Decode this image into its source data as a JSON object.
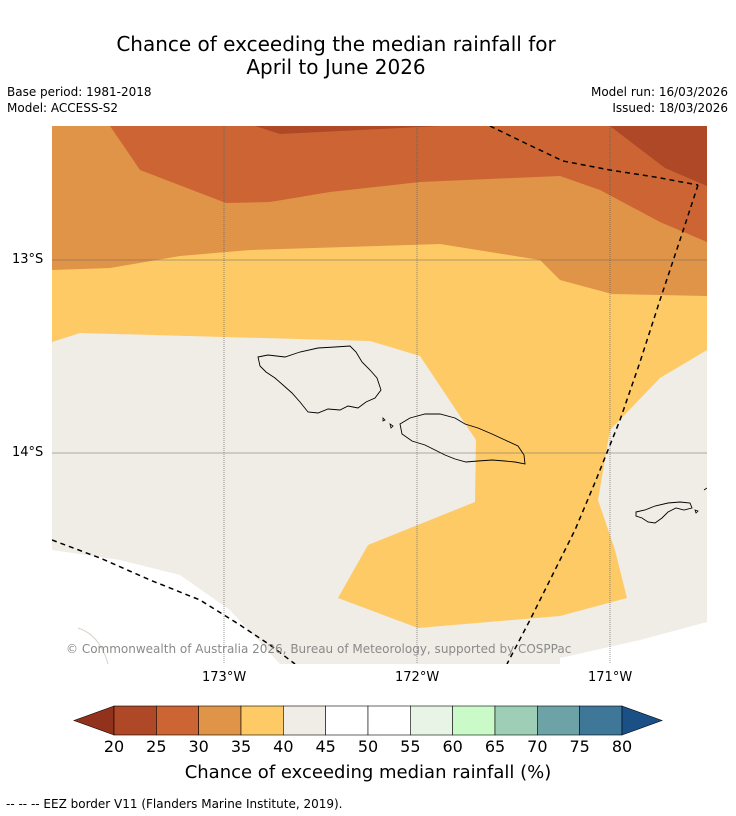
{
  "header": {
    "title_line1": "Chance of exceeding the median rainfall for",
    "title_line2": "April to June 2026",
    "base_period": "Base period: 1981-2018",
    "model": "Model: ACCESS-S2",
    "model_run": "Model run: 16/03/2026",
    "issued": "Issued: 18/03/2026"
  },
  "map": {
    "lon_ticks": [
      "173°W",
      "172°W",
      "171°W"
    ],
    "lat_ticks": [
      "13°S",
      "14°S"
    ],
    "copyright": "© Commonwealth of Australia 2026, Bureau of Meteorology, supported by COSPPac",
    "region_categories": [
      "20-25",
      "25-30",
      "30-35",
      "35-40",
      "40-45"
    ]
  },
  "colorbar": {
    "ticks": [
      "20",
      "25",
      "30",
      "35",
      "40",
      "45",
      "50",
      "55",
      "60",
      "65",
      "70",
      "75",
      "80"
    ],
    "colors": [
      "#ae4826",
      "#cc6533",
      "#e09448",
      "#fdca66",
      "#f0ece6",
      "#ffffff",
      "#ffffff",
      "#e8f5e6",
      "#c9fac8",
      "#9ecfb6",
      "#6da3a6",
      "#3f7799"
    ],
    "under_color": "#93321c",
    "over_color": "#1b5087",
    "title": "Chance of exceeding median rainfall (%)"
  },
  "footer": {
    "legend_note": "-- -- -- EEZ border V11 (Flanders Marine Institute, 2019)."
  }
}
